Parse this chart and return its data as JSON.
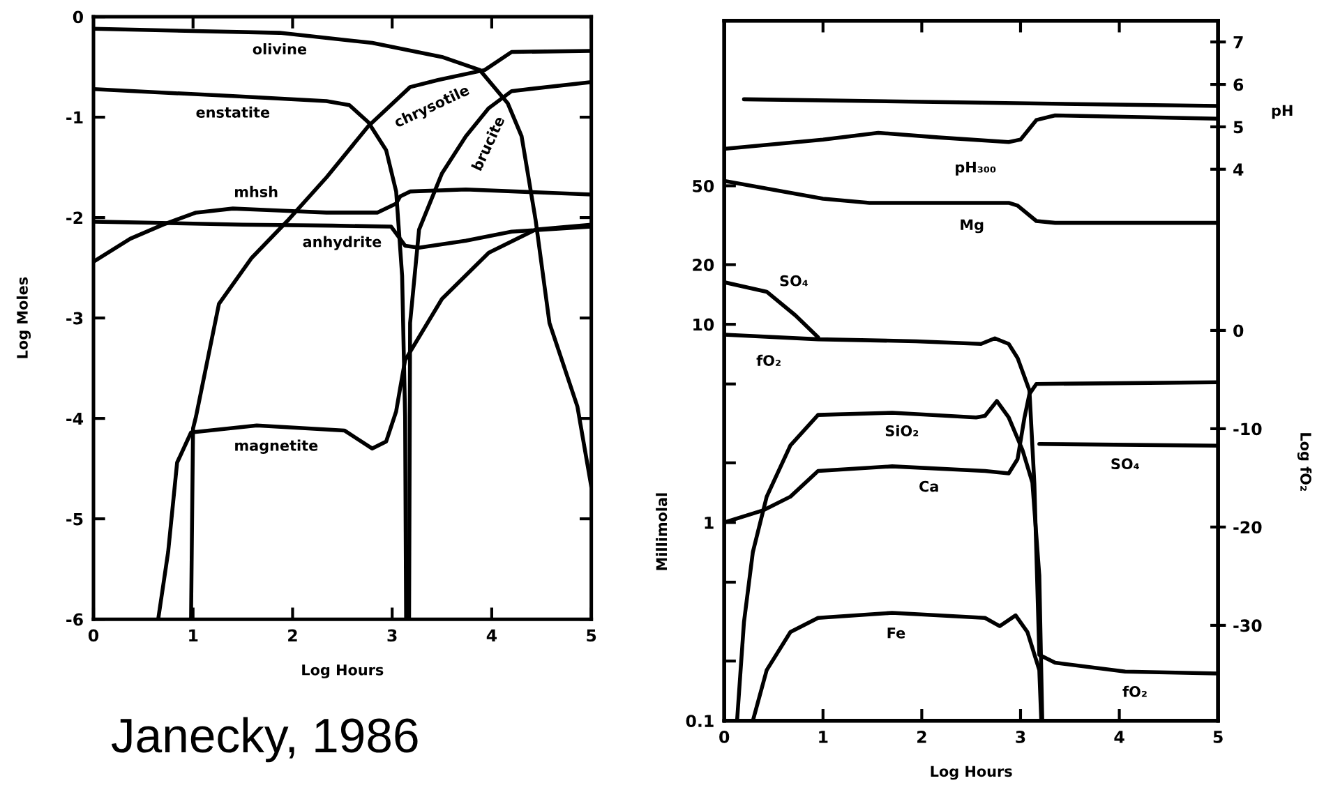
{
  "chart_data": [
    {
      "type": "line",
      "xlabel": "Log Hours",
      "ylabel": "Log Moles",
      "xlim": [
        0,
        5
      ],
      "ylim": [
        -6,
        0
      ],
      "xticks": [
        0,
        1,
        2,
        3,
        4,
        5
      ],
      "yticks": [
        0,
        -1,
        -2,
        -3,
        -4,
        -5,
        -6
      ],
      "annotations": [
        "Janecky, 1986"
      ],
      "series": [
        {
          "name": "olivine",
          "color": "#000000",
          "x": [
            0,
            1.87,
            2.8,
            3.5,
            3.88,
            4.16,
            4.3,
            4.44,
            4.58,
            4.86,
            5
          ],
          "values": [
            -0.12,
            -0.16,
            -0.26,
            -0.4,
            -0.53,
            -0.86,
            -1.19,
            -2.02,
            -3.05,
            -3.88,
            -4.68
          ]
        },
        {
          "name": "enstatite",
          "color": "#000000",
          "x": [
            0,
            1.4,
            2.34,
            2.57,
            2.76,
            2.94,
            3.04,
            3.1,
            3.13,
            3.14
          ],
          "values": [
            -0.72,
            -0.79,
            -0.84,
            -0.88,
            -1.05,
            -1.33,
            -1.74,
            -2.58,
            -3.98,
            -6
          ]
        },
        {
          "name": "chrysotile",
          "color": "#000000",
          "x": [
            0.98,
            1.0,
            1.03,
            1.26,
            1.59,
            1.96,
            2.34,
            2.76,
            3.18,
            3.46,
            3.93,
            4.2,
            5
          ],
          "values": [
            -6,
            -4.1,
            -3.98,
            -2.86,
            -2.4,
            -2.02,
            -1.6,
            -1.09,
            -0.7,
            -0.63,
            -0.53,
            -0.35,
            -0.34
          ]
        },
        {
          "name": "brucite",
          "color": "#000000",
          "x": [
            3.17,
            3.18,
            3.27,
            3.5,
            3.74,
            3.97,
            4.2,
            5
          ],
          "values": [
            -6,
            -3.05,
            -2.12,
            -1.56,
            -1.19,
            -0.91,
            -0.74,
            -0.65
          ]
        },
        {
          "name": "mhsh",
          "color": "#000000",
          "x": [
            0,
            0.37,
            0.7,
            1.03,
            1.4,
            1.87,
            2.34,
            2.85,
            3.04,
            3.08,
            3.18,
            3.74,
            5
          ],
          "values": [
            -2.44,
            -2.21,
            -2.07,
            -1.95,
            -1.91,
            -1.93,
            -1.95,
            -1.95,
            -1.86,
            -1.79,
            -1.74,
            -1.72,
            -1.77
          ]
        },
        {
          "name": "anhydrite",
          "color": "#000000",
          "x": [
            0,
            1.5,
            2.4,
            2.99,
            3.13,
            3.27,
            3.74,
            4.2,
            5
          ],
          "values": [
            -2.04,
            -2.07,
            -2.08,
            -2.09,
            -2.28,
            -2.3,
            -2.23,
            -2.14,
            -2.09
          ]
        },
        {
          "name": "magnetite",
          "color": "#000000",
          "x": [
            0.65,
            0.75,
            0.84,
            0.98,
            1.64,
            2.52,
            2.8,
            2.94,
            3.04,
            3.08,
            3.13,
            3.5,
            3.97,
            4.44,
            5
          ],
          "values": [
            -6,
            -5.33,
            -4.44,
            -4.14,
            -4.07,
            -4.12,
            -4.3,
            -4.23,
            -3.93,
            -3.7,
            -3.42,
            -2.81,
            -2.35,
            -2.12,
            -2.07
          ]
        }
      ]
    },
    {
      "type": "line",
      "xlabel": "Log Hours",
      "ylabel": "Millimolal",
      "y2label": "pH",
      "y3label": "Log fO₂",
      "log": "y",
      "xlim": [
        0,
        5
      ],
      "ylim": [
        0.1,
        340
      ],
      "xticks": [
        0,
        1,
        2,
        3,
        4,
        5
      ],
      "yticks": [
        {
          "value": 0.1,
          "label": "0.1"
        },
        {
          "value": 0.2,
          "label": null
        },
        {
          "value": 0.5,
          "label": null
        },
        1,
        {
          "value": 2,
          "label": null
        },
        {
          "value": 5,
          "label": null
        },
        10,
        20,
        50
      ],
      "y2lim": [
        -9.0,
        7.5
      ],
      "y2ticks": [
        4,
        5,
        6,
        7
      ],
      "y3lim": [
        -39.7,
        31.5
      ],
      "y3ticks": [
        0,
        -10,
        -20,
        -30
      ],
      "series": [
        {
          "color": "#000000",
          "axis": "y2",
          "x": [
            0.2,
            5
          ],
          "values": [
            5.65,
            5.49
          ]
        },
        {
          "name": "pH₃₀₀",
          "color": "#000000",
          "axis": "y2",
          "x": [
            0,
            1.0,
            1.56,
            2.17,
            2.88,
            3.0,
            3.16,
            3.35,
            5
          ],
          "values": [
            4.48,
            4.7,
            4.86,
            4.75,
            4.64,
            4.7,
            5.16,
            5.27,
            5.19
          ]
        },
        {
          "name": "Mg",
          "color": "#000000",
          "x": [
            0,
            1.0,
            1.47,
            2.88,
            2.97,
            3.16,
            3.35,
            5
          ],
          "values": [
            52.9,
            43,
            41,
            41,
            39.7,
            33.2,
            32.5,
            32.5
          ]
        },
        {
          "name": "SO₄",
          "color": "#000000",
          "x": [
            0,
            0.43,
            0.72,
            0.95,
            3.0,
            3.19,
            5
          ],
          "values": [
            16.3,
            14.6,
            11.1,
            8.6,
            null,
            2.49,
            2.44
          ]
        },
        {
          "name": "fO₂",
          "color": "#000000",
          "axis": "y3",
          "x": [
            0,
            0.95,
            1.94,
            2.6,
            2.74,
            2.88,
            2.97,
            3.09,
            3.14,
            3.19,
            3.35,
            4.06,
            5
          ],
          "values": [
            -0.43,
            -0.9,
            -1.1,
            -1.37,
            -0.8,
            -1.37,
            -2.8,
            -6.1,
            -15.6,
            -33.0,
            -33.8,
            -34.7,
            -34.9
          ]
        },
        {
          "name": "SiO₂",
          "color": "#000000",
          "x": [
            0.13,
            0.2,
            0.29,
            0.43,
            0.67,
            0.95,
            1.7,
            2.55,
            2.64,
            2.76,
            2.88,
            3.02,
            3.12,
            3.19,
            3.22
          ],
          "values": [
            0.1,
            0.315,
            0.71,
            1.35,
            2.45,
            3.49,
            3.58,
            3.39,
            3.45,
            4.1,
            3.39,
            2.32,
            1.59,
            0.54,
            0.1
          ]
        },
        {
          "name": "Ca",
          "color": "#000000",
          "x": [
            0,
            0.39,
            0.67,
            0.95,
            1.7,
            2.64,
            2.88,
            2.97,
            3.04,
            3.09,
            3.16,
            5
          ],
          "values": [
            1.0,
            1.15,
            1.35,
            1.82,
            1.92,
            1.82,
            1.77,
            2.09,
            3.39,
            4.45,
            5.0,
            5.1
          ]
        },
        {
          "name": "Fe",
          "color": "#000000",
          "x": [
            0.29,
            0.43,
            0.67,
            0.95,
            1.7,
            2.64,
            2.79,
            2.95,
            3.07,
            3.19,
            3.21
          ],
          "values": [
            0.1,
            0.18,
            0.28,
            0.33,
            0.35,
            0.33,
            0.3,
            0.34,
            0.28,
            0.18,
            0.1
          ]
        }
      ]
    }
  ]
}
